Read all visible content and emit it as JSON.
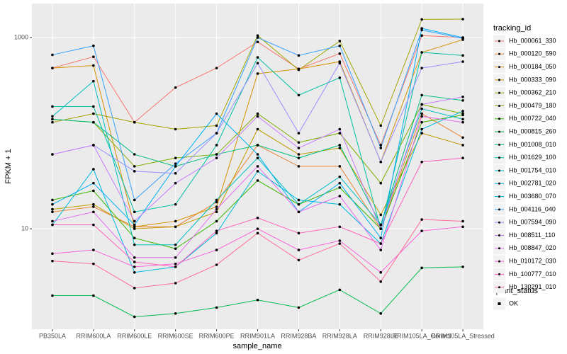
{
  "chart_data": {
    "type": "line",
    "x_label": "sample_name",
    "y_label": "FPKM + 1",
    "y_scale": "log",
    "grid": true,
    "legend_position": "right",
    "legend_title": "tracking_id",
    "point_color": "#000000",
    "shape_legend": {
      "title": "quant_status",
      "labels": [
        "OK"
      ]
    },
    "categories": [
      "PB350LA",
      "RRIM600LA",
      "RRIM600LE",
      "RRIM600SE",
      "RRIM600PE",
      "RRIM901LA",
      "RRIM928BA",
      "RRIM928LA",
      "RRIM928LE",
      "RRIM105LA_Control",
      "RRIM105LA_Stressed"
    ],
    "ylim": [
      0.89,
      2270
    ],
    "yticks": [
      10,
      1000
    ],
    "series": [
      {
        "name": "Hb_000061_330",
        "color": "#F8766D",
        "values": [
          480,
          630,
          130,
          300,
          480,
          900,
          470,
          680,
          75,
          1050,
          1000
        ]
      },
      {
        "name": "Hb_000120_590",
        "color": "#EA8331",
        "values": [
          15,
          17,
          10.5,
          10.5,
          19,
          75,
          45,
          45,
          10,
          160,
          90
        ]
      },
      {
        "name": "Hb_000184_050",
        "color": "#D89000",
        "values": [
          480,
          510,
          10.5,
          12,
          17,
          420,
          470,
          560,
          50,
          700,
          950
        ]
      },
      {
        "name": "Hb_000333_090",
        "color": "#C09B00",
        "values": [
          16,
          18,
          10,
          10.5,
          15,
          110,
          60,
          70,
          14,
          100,
          75
        ]
      },
      {
        "name": "Hb_000362_210",
        "color": "#A3A500",
        "values": [
          130,
          160,
          130,
          110,
          120,
          1050,
          460,
          920,
          120,
          1550,
          1560
        ]
      },
      {
        "name": "Hb_000479_180",
        "color": "#7CAE00",
        "values": [
          140,
          130,
          45,
          55,
          60,
          160,
          80,
          100,
          30,
          200,
          160
        ]
      },
      {
        "name": "Hb_000722_040",
        "color": "#39B600",
        "values": [
          20,
          25,
          8,
          6.2,
          12,
          32,
          18,
          27,
          10,
          130,
          155
        ]
      },
      {
        "name": "Hb_000815_260",
        "color": "#00BB4E",
        "values": [
          2.0,
          2.0,
          1.2,
          1.3,
          1.5,
          1.8,
          1.5,
          2.3,
          1.3,
          3.9,
          4.0
        ]
      },
      {
        "name": "Hb_001008_010",
        "color": "#00BF7D",
        "values": [
          140,
          130,
          60,
          45,
          60,
          75,
          55,
          75,
          11,
          250,
          220
        ]
      },
      {
        "name": "Hb_001629_100",
        "color": "#00C1A3",
        "values": [
          190,
          190,
          15,
          18,
          75,
          620,
          250,
          380,
          10,
          700,
          650
        ]
      },
      {
        "name": "Hb_001754_010",
        "color": "#00BFC4",
        "values": [
          150,
          350,
          6.8,
          6.8,
          20,
          55,
          18,
          35,
          11,
          180,
          140
        ]
      },
      {
        "name": "Hb_002781_020",
        "color": "#00BAE0",
        "values": [
          11,
          42,
          3.5,
          4.0,
          9,
          40,
          20,
          18,
          7,
          110,
          170
        ]
      },
      {
        "name": "Hb_003680_070",
        "color": "#00B0F6",
        "values": [
          18,
          30,
          11,
          45,
          160,
          60,
          15,
          30,
          8,
          1250,
          1000
        ]
      },
      {
        "name": "Hb_004116_040",
        "color": "#35A2FF",
        "values": [
          660,
          820,
          20,
          48,
          100,
          1000,
          650,
          820,
          70,
          1200,
          980
        ]
      },
      {
        "name": "Hb_007594_090",
        "color": "#9590FF",
        "values": [
          60,
          75,
          40,
          38,
          100,
          540,
          100,
          540,
          50,
          480,
          560
        ]
      },
      {
        "name": "Hb_008511_110",
        "color": "#C77CFF",
        "values": [
          60,
          75,
          12,
          30,
          55,
          150,
          70,
          110,
          10,
          200,
          240
        ]
      },
      {
        "name": "Hb_008847_020",
        "color": "#E76BF3",
        "values": [
          12,
          15,
          5.0,
          5.0,
          16,
          45,
          15,
          22,
          6,
          150,
          130
        ]
      },
      {
        "name": "Hb_010172_030",
        "color": "#FA62DB",
        "values": [
          5.5,
          6,
          4,
          4.3,
          6,
          10,
          6,
          7.5,
          3.5,
          9.5,
          10.5
        ]
      },
      {
        "name": "Hb_100777_010",
        "color": "#FF62BC",
        "values": [
          11,
          11,
          4.5,
          4.0,
          9.5,
          13,
          9,
          10.5,
          7,
          50,
          55
        ]
      },
      {
        "name": "Hb_130291_010",
        "color": "#FF6C91",
        "values": [
          4.6,
          4.3,
          2.4,
          2.7,
          4.2,
          9,
          4.7,
          7,
          2.8,
          12.5,
          12
        ]
      }
    ]
  }
}
